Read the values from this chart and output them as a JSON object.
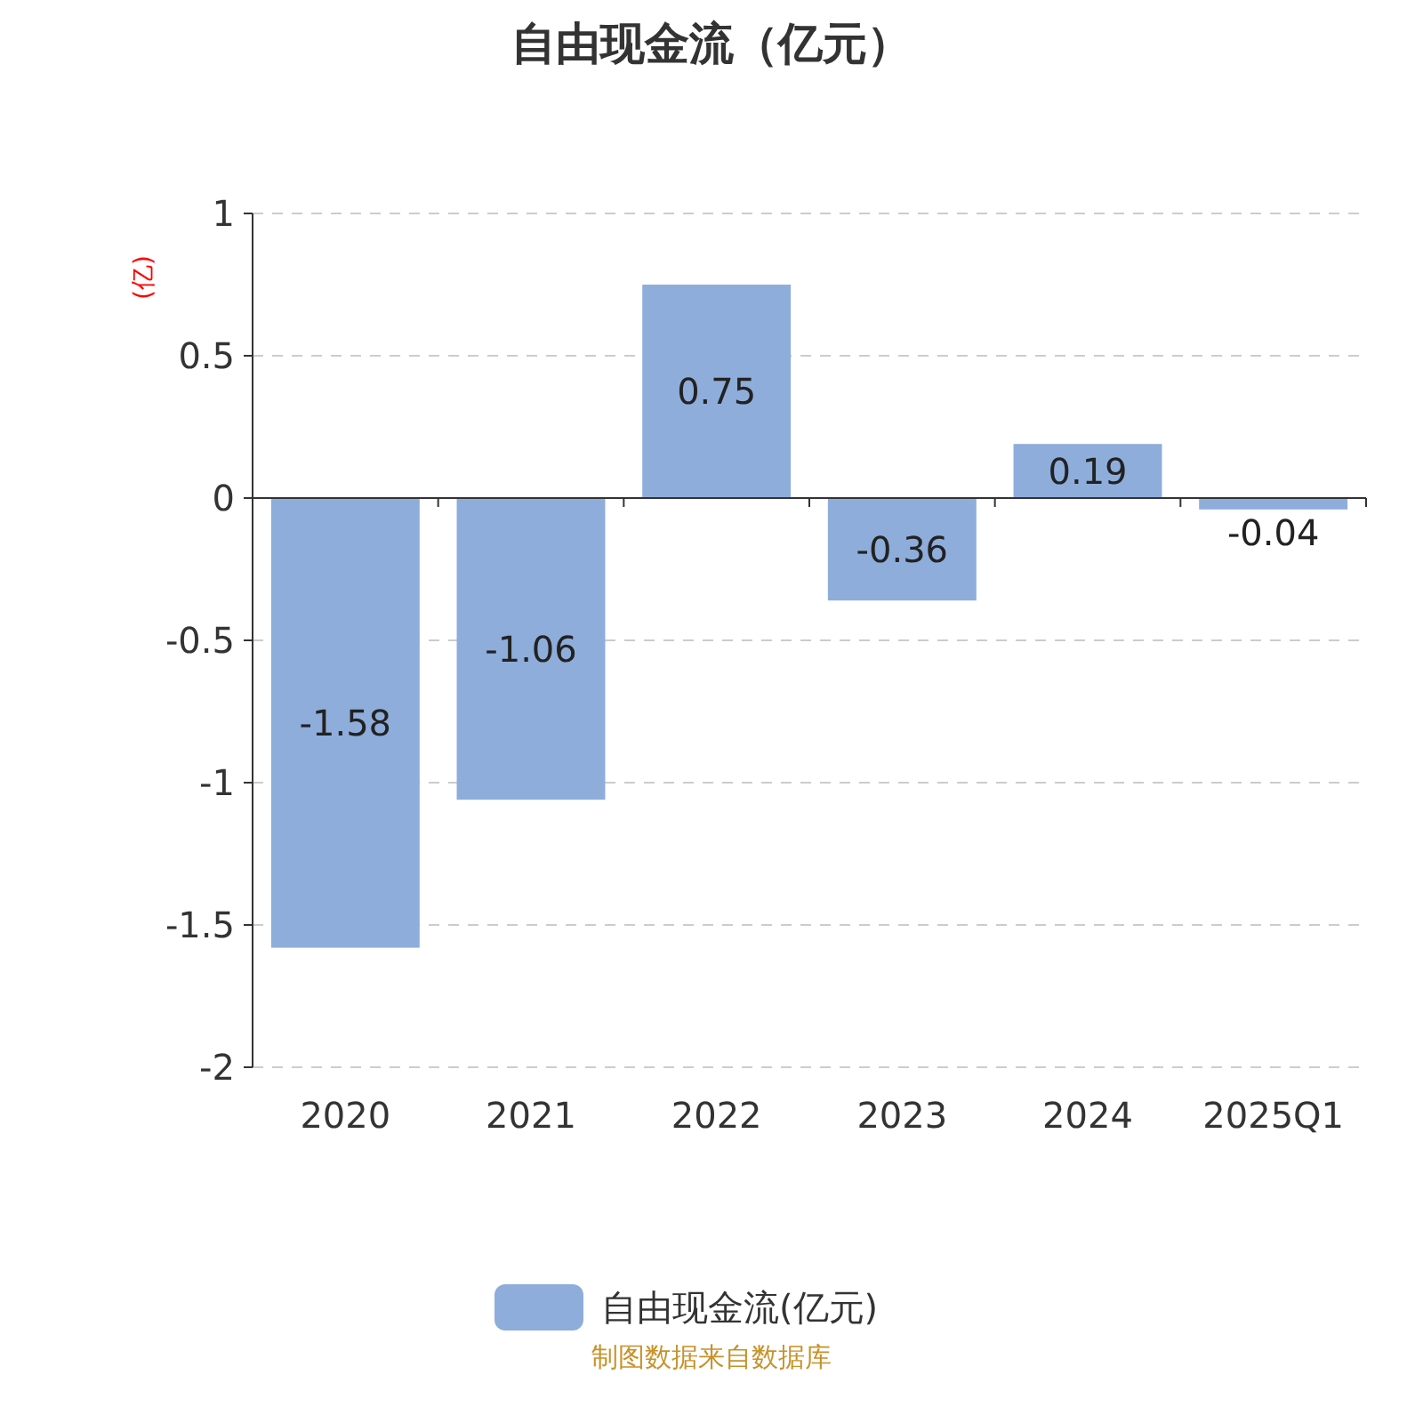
{
  "chart_data": {
    "type": "bar",
    "title": "自由现金流（亿元）",
    "ylabel": "(亿)",
    "categories": [
      "2020",
      "2021",
      "2022",
      "2023",
      "2024",
      "2025Q1"
    ],
    "series": [
      {
        "name": "自由现金流(亿元)",
        "color": "#8eaddb",
        "values": [
          -1.58,
          -1.06,
          0.75,
          -0.36,
          0.19,
          -0.04
        ]
      }
    ],
    "ylim": [
      -2,
      1
    ],
    "yticks": [
      -2,
      -1.5,
      -1,
      -0.5,
      0,
      0.5,
      1
    ],
    "grid": "y",
    "legend": "bottom",
    "data_labels": true,
    "annotations": [
      "制图数据来自数据库"
    ]
  }
}
